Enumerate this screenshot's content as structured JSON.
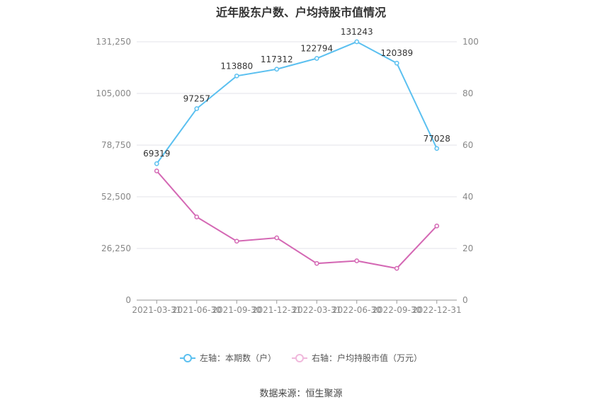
{
  "chart_data": {
    "type": "line",
    "title": "近年股东户数、户均持股市值情况",
    "categories": [
      "2021-03-31",
      "2021-06-30",
      "2021-09-30",
      "2021-12-31",
      "2022-03-31",
      "2022-06-30",
      "2022-09-30",
      "2022-12-31"
    ],
    "left_axis": {
      "ylim": [
        0,
        131250
      ],
      "ticks": [
        "0",
        "26,250",
        "52,500",
        "78,750",
        "105,000",
        "131,250"
      ],
      "tick_values": [
        0,
        26250,
        52500,
        78750,
        105000,
        131250
      ]
    },
    "right_axis": {
      "ylim": [
        0,
        100
      ],
      "ticks": [
        "0",
        "20",
        "40",
        "60",
        "80",
        "100"
      ],
      "tick_values": [
        0,
        20,
        40,
        60,
        80,
        100
      ]
    },
    "series": [
      {
        "name": "左轴：本期数（户）",
        "axis": "left",
        "color": "#5bc0f0",
        "values": [
          69319,
          97257,
          113880,
          117312,
          122794,
          131243,
          120389,
          77028
        ],
        "labels": [
          "69319",
          "97257",
          "113880",
          "117312",
          "122794",
          "131243",
          "120389",
          "77028"
        ]
      },
      {
        "name": "右轴：户均持股市值（万元）",
        "axis": "right",
        "color": "#d468b4",
        "values": [
          50.0,
          32.2,
          22.8,
          24.1,
          14.2,
          15.2,
          12.3,
          28.7
        ]
      }
    ],
    "grid": true,
    "legend": "bottom"
  },
  "source": "数据来源：恒生聚源"
}
